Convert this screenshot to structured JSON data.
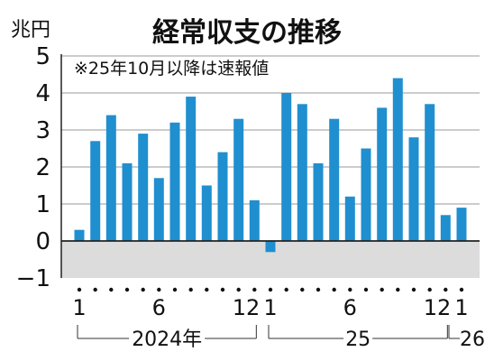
{
  "chart_data": {
    "type": "bar",
    "title": "経常収支の推移",
    "unit_label": "兆円",
    "note": "※25年10月以降は速報値",
    "x": [
      "2024-01",
      "2024-02",
      "2024-03",
      "2024-04",
      "2024-05",
      "2024-06",
      "2024-07",
      "2024-08",
      "2024-09",
      "2024-10",
      "2024-11",
      "2024-12",
      "2025-01",
      "2025-02",
      "2025-03",
      "2025-04",
      "2025-05",
      "2025-06",
      "2025-07",
      "2025-08",
      "2025-09",
      "2025-10",
      "2025-11",
      "2025-12",
      "2026-01"
    ],
    "values": [
      0.3,
      2.7,
      3.4,
      2.1,
      2.9,
      1.7,
      3.2,
      3.9,
      1.5,
      2.4,
      3.3,
      1.1,
      -0.3,
      4.0,
      3.7,
      2.1,
      3.3,
      1.2,
      2.5,
      3.6,
      4.4,
      2.8,
      3.7,
      0.7,
      0.9
    ],
    "ylim": [
      -1,
      5
    ],
    "y_ticks": [
      "5",
      "4",
      "3",
      "2",
      "1",
      "0",
      "−1"
    ],
    "y_tick_values": [
      5,
      4,
      3,
      2,
      1,
      0,
      -1
    ],
    "x_tick_labels": [
      {
        "index": 0,
        "label": "1"
      },
      {
        "index": 5,
        "label": "6"
      },
      {
        "index": 11,
        "label": "12"
      },
      {
        "index": 12,
        "label": "1"
      },
      {
        "index": 17,
        "label": "6"
      },
      {
        "index": 23,
        "label": "12"
      },
      {
        "index": 24,
        "label": "1"
      }
    ],
    "year_groups": [
      {
        "label": "2024年",
        "start": 0,
        "end": 11
      },
      {
        "label": "25",
        "start": 12,
        "end": 23
      },
      {
        "label": "26",
        "start": 24,
        "end": 24
      }
    ],
    "grid": true,
    "bar_color": "#1f8fcf",
    "negative_band_color": "#dcdcdc"
  }
}
